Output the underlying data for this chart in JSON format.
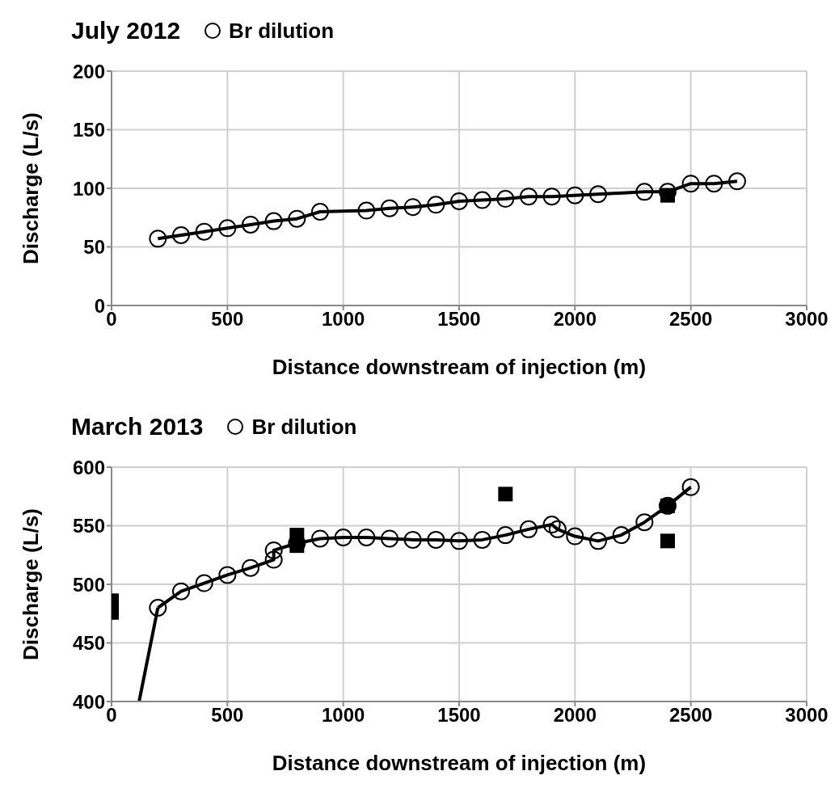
{
  "chart_data": [
    {
      "type": "line",
      "title": "July 2012",
      "xlabel": "Distance downstream of injection (m)",
      "ylabel": "Discharge (L/s)",
      "xlim": [
        0,
        3000
      ],
      "xticks": [
        0,
        500,
        1000,
        1500,
        2000,
        2500,
        3000
      ],
      "ylim": [
        0,
        200
      ],
      "yticks": [
        0,
        50,
        100,
        150,
        200
      ],
      "grid": true,
      "legend": "top",
      "line_style": "solid",
      "series": [
        {
          "name": "Br dilution",
          "color": "#000000",
          "marker": "circle",
          "x": [
            200,
            300,
            400,
            500,
            600,
            700,
            800,
            900,
            1100,
            1200,
            1300,
            1400,
            1500,
            1600,
            1700,
            1800,
            1900,
            2000,
            2100,
            2300,
            2400,
            2500,
            2600,
            2700
          ],
          "values": [
            57,
            60,
            63,
            66,
            69,
            72,
            74,
            80,
            81,
            83,
            84,
            86,
            89,
            90,
            91,
            93,
            93,
            94,
            95,
            97,
            97,
            104,
            104,
            106
          ]
        },
        {
          "type": "scatter",
          "color": "#000000",
          "marker": "square",
          "x": [
            2400
          ],
          "values": [
            94
          ]
        }
      ]
    },
    {
      "type": "line",
      "title": "March 2013",
      "xlabel": "Distance downstream of injection (m)",
      "ylabel": "Discharge (L/s)",
      "xlim": [
        0,
        3000
      ],
      "xticks": [
        0,
        500,
        1000,
        1500,
        2000,
        2500,
        3000
      ],
      "ylim": [
        400,
        600
      ],
      "yticks": [
        400,
        450,
        500,
        550,
        600
      ],
      "grid": true,
      "legend": "top",
      "line_style": "solid",
      "series": [
        {
          "color": "#000000",
          "x": [
            119,
            200
          ],
          "values": [
            400,
            480
          ]
        },
        {
          "name": "Br dilution",
          "color": "#000000",
          "marker": "circle",
          "x": [
            200,
            300,
            400,
            500,
            600,
            700,
            700,
            800,
            900,
            1000,
            1100,
            1200,
            1300,
            1400,
            1500,
            1600,
            1700,
            1800,
            1900,
            1925,
            2000,
            2100,
            2200,
            2300,
            2400,
            2500
          ],
          "values": [
            480,
            494,
            501,
            508,
            514,
            521,
            529,
            535,
            539,
            540,
            540,
            539,
            538,
            538,
            537,
            538,
            542,
            547,
            551,
            547,
            541,
            537,
            542,
            553,
            567,
            583
          ]
        },
        {
          "type": "scatter",
          "color": "#000000",
          "marker": "square",
          "x": [
            0,
            0,
            800,
            800,
            1700,
            2400,
            2400
          ],
          "values": [
            486,
            476,
            542,
            533,
            577,
            567,
            537
          ]
        }
      ]
    }
  ]
}
